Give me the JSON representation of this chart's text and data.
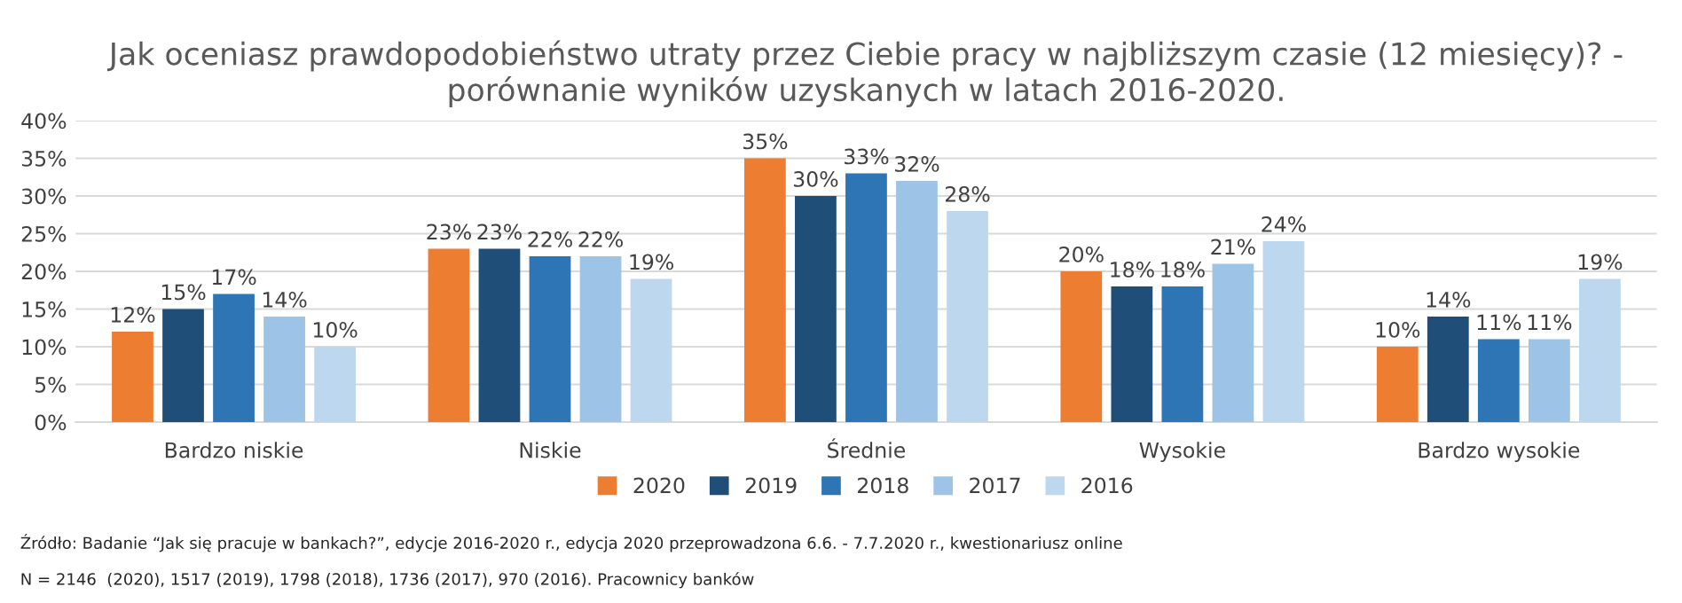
{
  "chart_data": {
    "type": "bar",
    "title": "Jak oceniasz prawdopodobieństwo utraty przez Ciebie pracy w najbliższym czasie (12 miesięcy)? - porównanie wyników uzyskanych w latach 2016-2020.",
    "categories": [
      "Bardzo niskie",
      "Niskie",
      "Średnie",
      "Wysokie",
      "Bardzo wysokie"
    ],
    "series": [
      {
        "name": "2020",
        "color": "#ed7d31",
        "values": [
          12,
          23,
          35,
          20,
          10
        ],
        "value_labels": [
          "12%",
          "23%",
          "35%",
          "20%",
          "10%"
        ]
      },
      {
        "name": "2019",
        "color": "#1f4e79",
        "values": [
          15,
          23,
          30,
          18,
          14
        ],
        "value_labels": [
          "15%",
          "23%",
          "30%",
          "18%",
          "14%"
        ]
      },
      {
        "name": "2018",
        "color": "#2e75b6",
        "values": [
          17,
          22,
          33,
          18,
          11
        ],
        "value_labels": [
          "17%",
          "22%",
          "33%",
          "18%",
          "11%"
        ]
      },
      {
        "name": "2017",
        "color": "#9dc3e6",
        "values": [
          14,
          22,
          32,
          21,
          11
        ],
        "value_labels": [
          "14%",
          "22%",
          "32%",
          "21%",
          "11%"
        ]
      },
      {
        "name": "2016",
        "color": "#bdd7ee",
        "values": [
          10,
          19,
          28,
          24,
          19
        ],
        "value_labels": [
          "10%",
          "19%",
          "28%",
          "24%",
          "19%"
        ]
      }
    ],
    "ylim": [
      0,
      40
    ],
    "yticks": [
      {
        "value": 0,
        "label": "0%"
      },
      {
        "value": 5,
        "label": "5%"
      },
      {
        "value": 10,
        "label": "10%"
      },
      {
        "value": 15,
        "label": "15%"
      },
      {
        "value": 20,
        "label": "20%"
      },
      {
        "value": 25,
        "label": "25%"
      },
      {
        "value": 30,
        "label": "30%"
      },
      {
        "value": 35,
        "label": "35%"
      },
      {
        "value": 40,
        "label": "40%"
      }
    ],
    "grid": "y",
    "legend": "bottom",
    "annotations": [
      "Źródło: Badanie “Jak się pracuje w bankach?”, edycje 2016-2020 r., edycja 2020 przeprowadzona 6.6. - 7.7.2020 r., kwestionariusz online",
      "N = 2146  (2020), 1517 (2019), 1798 (2018), 1736 (2017), 970 (2016). Pracownicy banków"
    ]
  }
}
